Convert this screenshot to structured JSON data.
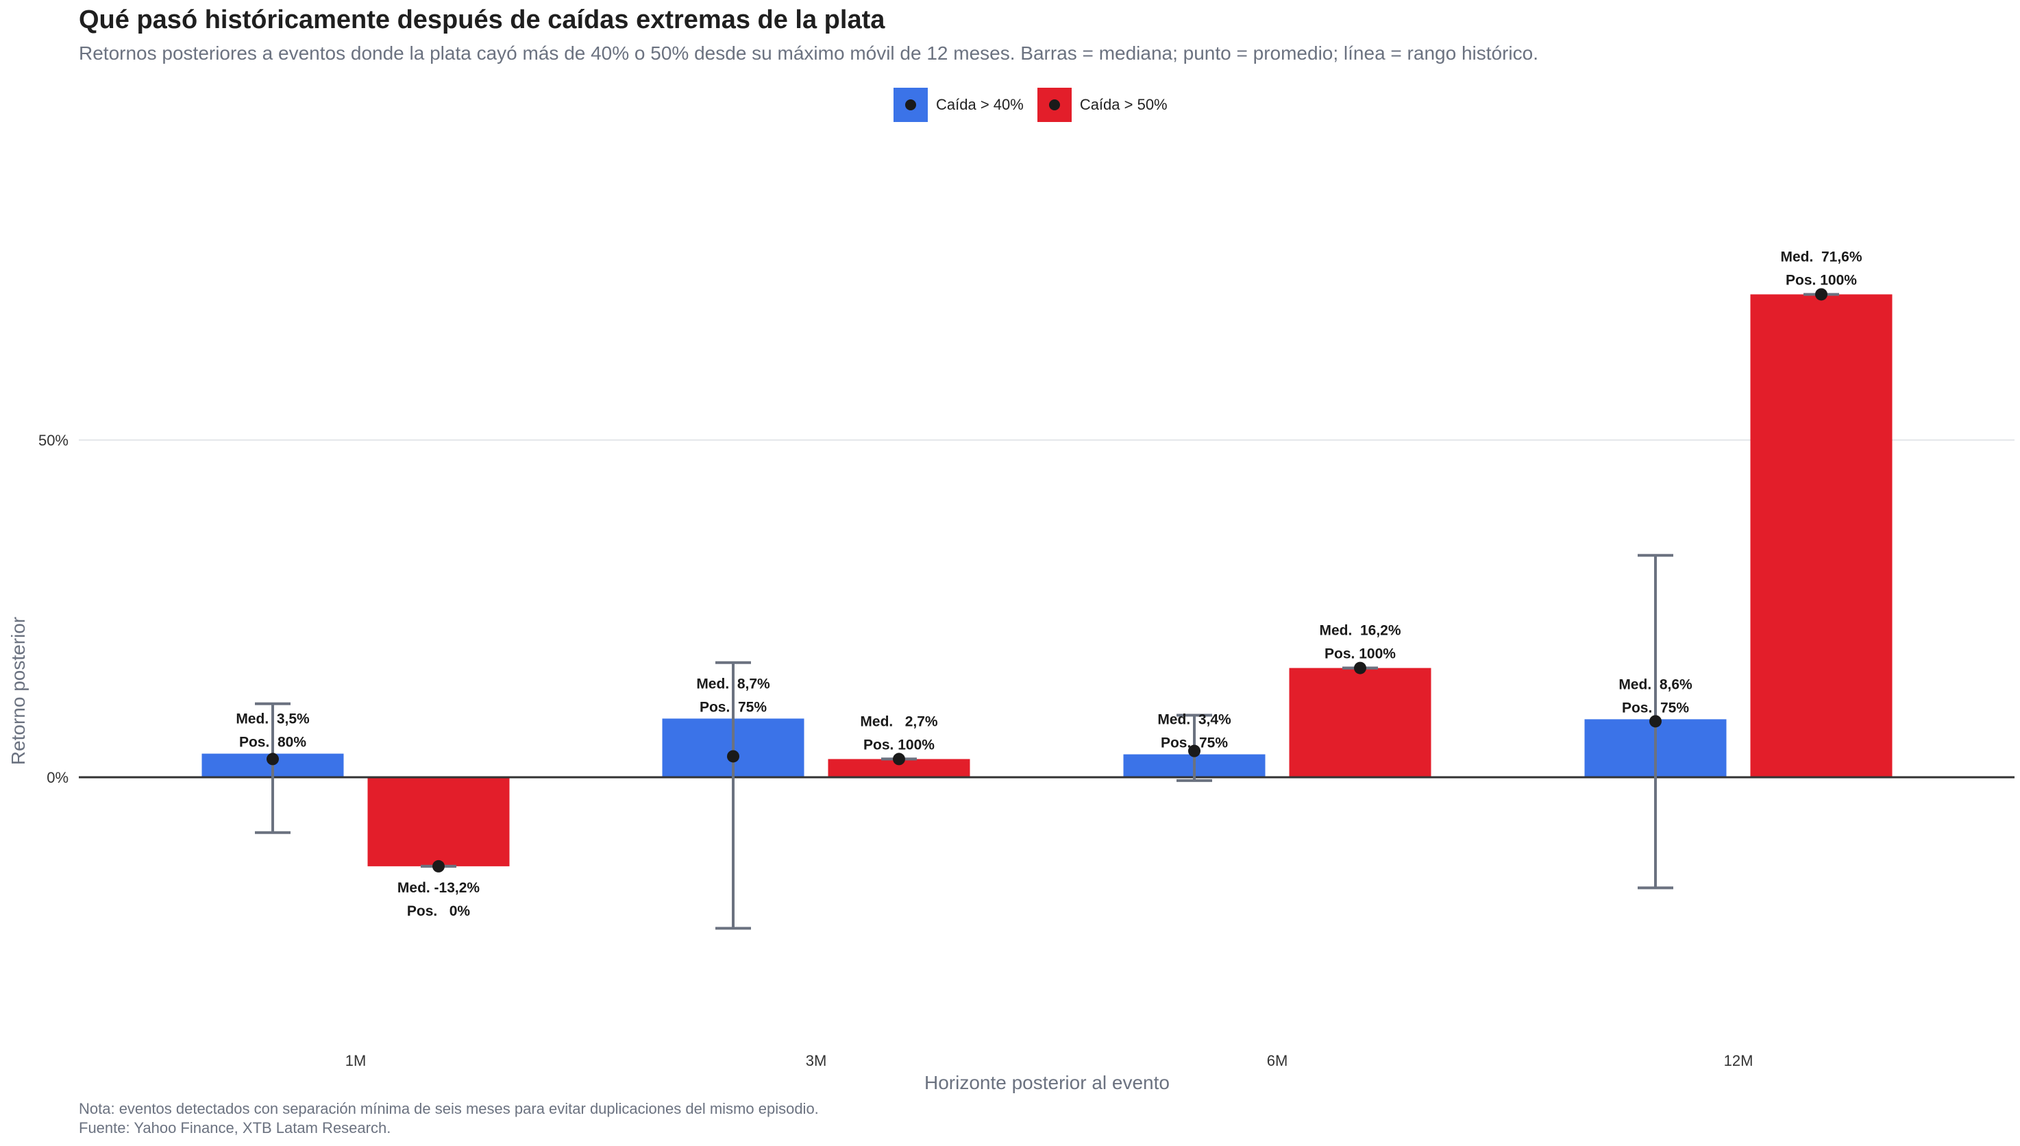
{
  "title": "Qué pasó históricamente después de caídas extremas de la plata",
  "subtitle": "Retornos posteriores a eventos donde la plata cayó más de 40% o 50% desde su máximo móvil de 12 meses. Barras = mediana; punto = promedio; línea = rango histórico.",
  "caption": {
    "line1": "Nota: eventos detectados con separación mínima de seis meses para evitar duplicaciones del mismo episodio.",
    "line2": "Fuente: Yahoo Finance, XTB Latam Research."
  },
  "colors": {
    "drop40": "#3b73e8",
    "drop50": "#e31e2a",
    "mean_point": "#1a1a1a",
    "range_line": "#6b7280",
    "zero_line": "#333333",
    "grid": "#e5e7eb"
  },
  "chart_data": {
    "type": "bar",
    "xlabel": "Horizonte posterior al evento",
    "ylabel": "Retorno posterior",
    "categories": [
      "1M",
      "3M",
      "6M",
      "12M"
    ],
    "y_ticks": [
      {
        "value": 0,
        "label": "0%"
      },
      {
        "value": 50,
        "label": "50%"
      }
    ],
    "ylim": [
      -38,
      88
    ],
    "grid": true,
    "legend_position": "top-center",
    "series": [
      {
        "name": "Caída > 40%",
        "color": "#3b73e8",
        "median": [
          3.5,
          8.7,
          3.4,
          8.6
        ],
        "mean": [
          2.7,
          3.1,
          3.9,
          8.3
        ],
        "range_min": [
          -8.2,
          -22.4,
          -0.5,
          -16.4
        ],
        "range_max": [
          10.9,
          17.0,
          9.2,
          32.9
        ],
        "labels": [
          {
            "med": "Med.  3,5%",
            "pos": "Pos.  80%"
          },
          {
            "med": "Med.  8,7%",
            "pos": "Pos.  75%"
          },
          {
            "med": "Med.  3,4%",
            "pos": "Pos.  75%"
          },
          {
            "med": "Med.  8,6%",
            "pos": "Pos.  75%"
          }
        ]
      },
      {
        "name": "Caída > 50%",
        "color": "#e31e2a",
        "median": [
          -13.2,
          2.7,
          16.2,
          71.6
        ],
        "mean": [
          -13.2,
          2.7,
          16.2,
          71.6
        ],
        "range_min": [
          -13.2,
          2.7,
          16.2,
          71.6
        ],
        "range_max": [
          -13.2,
          2.7,
          16.2,
          71.6
        ],
        "labels": [
          {
            "med": "Med. -13,2%",
            "pos": "Pos.   0%"
          },
          {
            "med": "Med.   2,7%",
            "pos": "Pos. 100%"
          },
          {
            "med": "Med.  16,2%",
            "pos": "Pos. 100%"
          },
          {
            "med": "Med.  71,6%",
            "pos": "Pos. 100%"
          }
        ]
      }
    ]
  }
}
